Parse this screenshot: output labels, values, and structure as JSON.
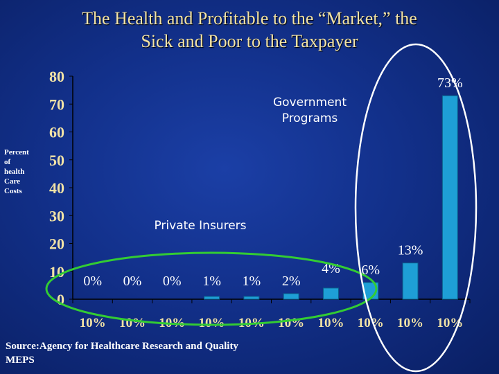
{
  "slide": {
    "title_line1": "The Health and Profitable to the “Market,” the",
    "title_line2": "Sick and Poor to the Taxpayer",
    "ylabel_lines": [
      "Percent",
      "of",
      "health",
      "Care",
      "Costs"
    ],
    "source_line1": "Source:Agency for Healthcare Research and Quality",
    "source_line2": "MEPS"
  },
  "colors": {
    "background": "#12308a",
    "bar": "#1e9fd6",
    "title_text": "#f2e3a6",
    "green_ellipse": "#33cc33",
    "white_ellipse": "#ffffff"
  },
  "chart_data": {
    "type": "bar",
    "title": "The Health and Profitable to the “Market,” the Sick and Poor to the Taxpayer",
    "ylabel": "Percent of health Care Costs",
    "xlabel": "",
    "ylim": [
      0,
      80
    ],
    "yticks": [
      "0",
      "10",
      "20",
      "30",
      "40",
      "50",
      "60",
      "70",
      "80"
    ],
    "categories": [
      "10%",
      "10%",
      "10%",
      "10%",
      "10%",
      "10%",
      "10%",
      "10%",
      "10%",
      "10%"
    ],
    "values": [
      0,
      0,
      0,
      1,
      1,
      2,
      4,
      6,
      13,
      73
    ],
    "data_labels": [
      "0%",
      "0%",
      "0%",
      "1%",
      "1%",
      "2%",
      "4%",
      "6%",
      "13%",
      "73%"
    ],
    "annotations": [
      "Government Programs",
      "Private Insurers"
    ],
    "grid": false,
    "legend": "none"
  }
}
